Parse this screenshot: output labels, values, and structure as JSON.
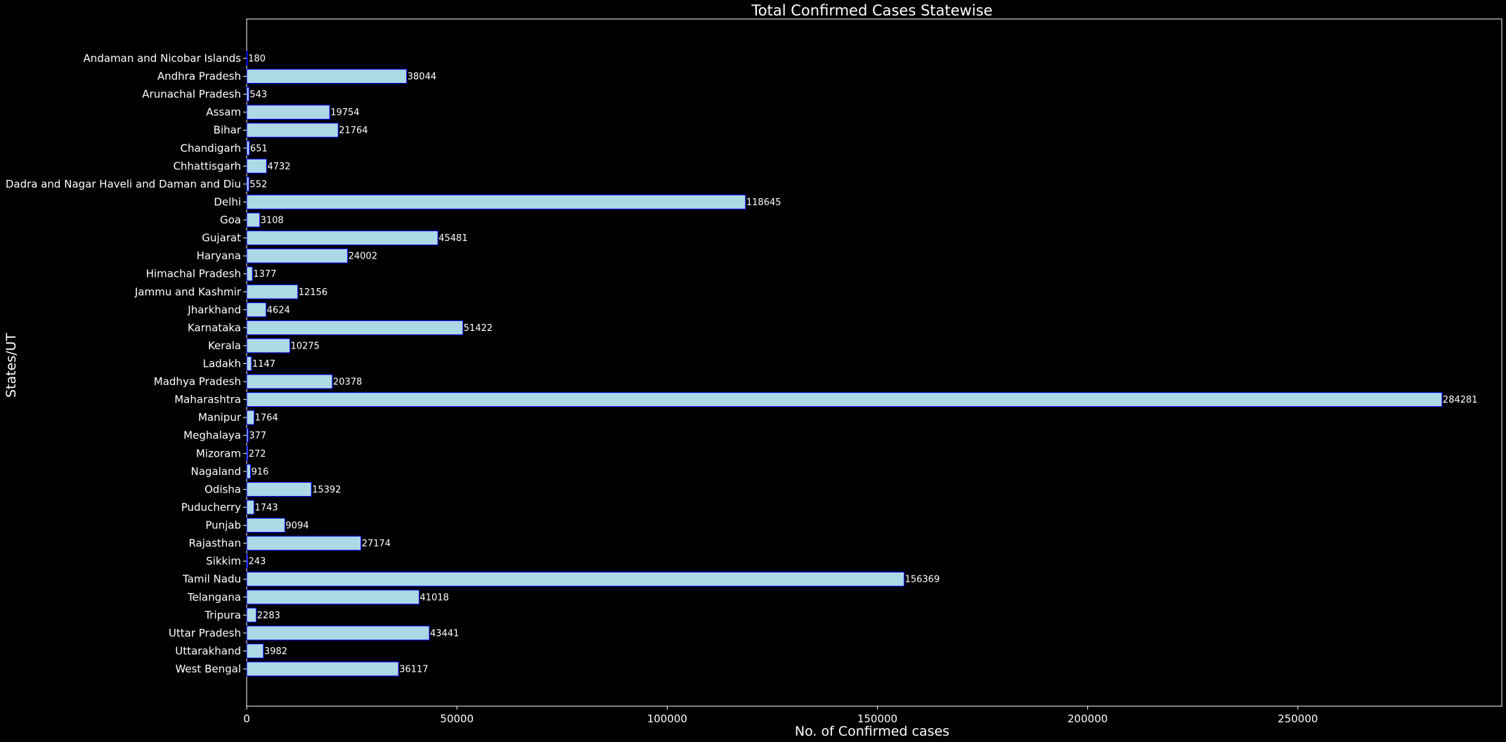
{
  "chart_data": {
    "type": "bar",
    "orientation": "horizontal",
    "title": "Total Confirmed Cases Statewise",
    "xlabel": "No. of Confirmed cases",
    "ylabel": "States/UT",
    "xlim": [
      0,
      298500
    ],
    "xticks": [
      0,
      50000,
      100000,
      150000,
      200000,
      250000
    ],
    "grid": false,
    "legend": "none",
    "colors": {
      "background": "#000000",
      "bar_fill": "#add8e6",
      "bar_edge": "#0000ff",
      "text": "#ffffff",
      "axis": "#ffffff"
    },
    "categories": [
      "Andaman and Nicobar Islands",
      "Andhra Pradesh",
      "Arunachal Pradesh",
      "Assam",
      "Bihar",
      "Chandigarh",
      "Chhattisgarh",
      "Dadra and Nagar Haveli and Daman and Diu",
      "Delhi",
      "Goa",
      "Gujarat",
      "Haryana",
      "Himachal Pradesh",
      "Jammu and Kashmir",
      "Jharkhand",
      "Karnataka",
      "Kerala",
      "Ladakh",
      "Madhya Pradesh",
      "Maharashtra",
      "Manipur",
      "Meghalaya",
      "Mizoram",
      "Nagaland",
      "Odisha",
      "Puducherry",
      "Punjab",
      "Rajasthan",
      "Sikkim",
      "Tamil Nadu",
      "Telangana",
      "Tripura",
      "Uttar Pradesh",
      "Uttarakhand",
      "West Bengal"
    ],
    "values": [
      180,
      38044,
      543,
      19754,
      21764,
      651,
      4732,
      552,
      118645,
      3108,
      45481,
      24002,
      1377,
      12156,
      4624,
      51422,
      10275,
      1147,
      20378,
      284281,
      1764,
      377,
      272,
      916,
      15392,
      1743,
      9094,
      27174,
      243,
      156369,
      41018,
      2283,
      43441,
      3982,
      36117
    ]
  }
}
